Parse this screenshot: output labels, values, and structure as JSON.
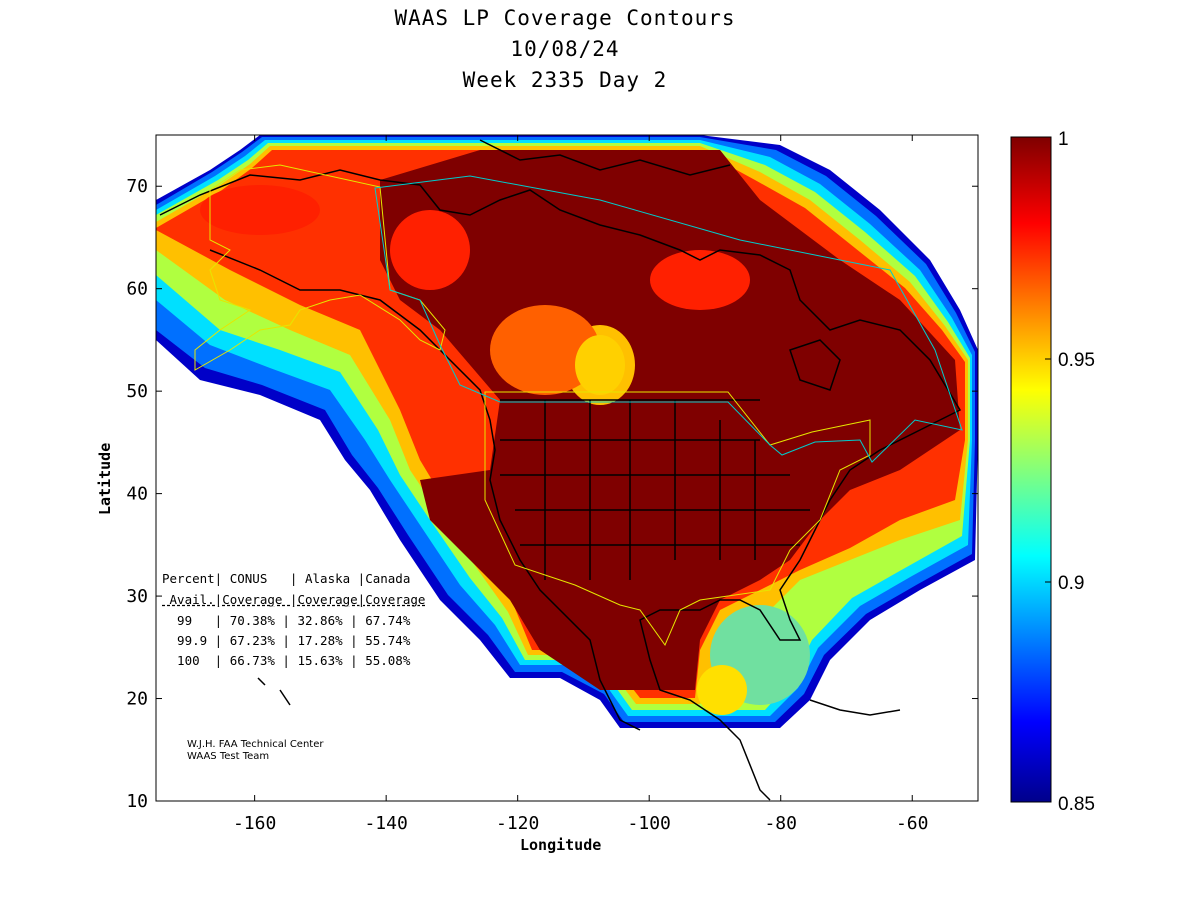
{
  "title": {
    "line1": "WAAS LP Coverage Contours",
    "line2": "10/08/24",
    "line3": "Week 2335 Day 2"
  },
  "axes": {
    "xlabel": "Longitude",
    "ylabel": "Latitude",
    "xlim": [
      -175,
      -50
    ],
    "ylim": [
      10,
      75
    ],
    "xticks": [
      -160,
      -140,
      -120,
      -100,
      -80,
      -60
    ],
    "yticks": [
      10,
      20,
      30,
      40,
      50,
      60,
      70
    ],
    "xtick_labels": [
      "-160",
      "-140",
      "-120",
      "-100",
      "-80",
      "-60"
    ],
    "ytick_labels": [
      "10",
      "20",
      "30",
      "40",
      "50",
      "60",
      "70"
    ]
  },
  "colorbar": {
    "range": [
      0.85,
      1
    ],
    "tick_labels": [
      "1",
      "0.95",
      "0.9",
      "0.85"
    ],
    "colormap": "jet",
    "low_color": "#00008b",
    "high_color": "#7f0000"
  },
  "coverage_table": {
    "header1": "Percent| CONUS   | Alaska |Canada",
    "header2": " Avail.|Coverage |Coverage|Coverage",
    "rows": [
      "  99   | 70.38% | 32.86% | 67.74%",
      "  99.9 | 67.23% | 17.28% | 55.74%",
      "  100  | 66.73% | 15.63% | 55.08%"
    ]
  },
  "credits": {
    "line1": "W.J.H. FAA Technical Center",
    "line2": "WAAS Test Team"
  },
  "boundary_colors": {
    "conus": "#e6e600",
    "alaska": "#e6e600",
    "canada": "#00cccc"
  }
}
